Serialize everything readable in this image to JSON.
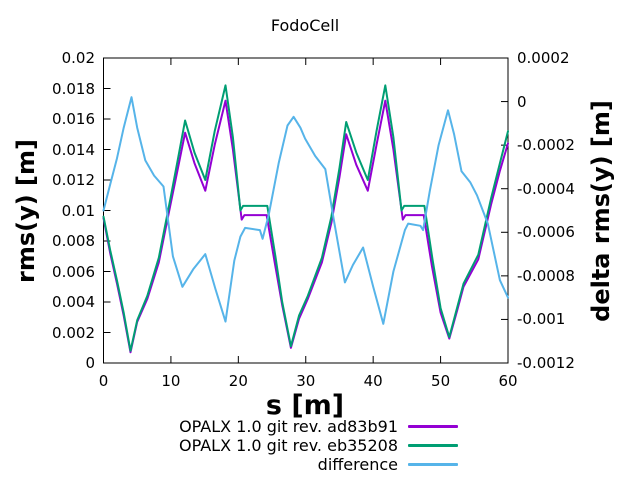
{
  "window": {
    "background": "#ffffff"
  },
  "chart_data": {
    "type": "line",
    "title": "FodoCell",
    "xlabel": "s [m]",
    "ylabel_left": "rms(y) [m]",
    "ylabel_right": "delta rms(y) [m]",
    "grid": false,
    "legend_position": "below plot, bottom center-right",
    "x_range": [
      0,
      60
    ],
    "y_left_range": [
      0,
      0.02
    ],
    "y_right_range": [
      -0.0012,
      0.0002
    ],
    "plot": {
      "l": 103.5,
      "t": 58,
      "r": 508,
      "b": 363
    },
    "axis_color": "#000000",
    "x_ticks": [
      {
        "v": 0,
        "label": "0"
      },
      {
        "v": 10,
        "label": "10"
      },
      {
        "v": 20,
        "label": "20"
      },
      {
        "v": 30,
        "label": "30"
      },
      {
        "v": 40,
        "label": "40"
      },
      {
        "v": 50,
        "label": "50"
      },
      {
        "v": 60,
        "label": "60"
      }
    ],
    "y_left_ticks": [
      {
        "v": 0,
        "label": "0"
      },
      {
        "v": 0.002,
        "label": "0.002"
      },
      {
        "v": 0.004,
        "label": "0.004"
      },
      {
        "v": 0.006,
        "label": "0.006"
      },
      {
        "v": 0.008,
        "label": "0.008"
      },
      {
        "v": 0.01,
        "label": "0.01"
      },
      {
        "v": 0.012,
        "label": "0.012"
      },
      {
        "v": 0.014,
        "label": "0.014"
      },
      {
        "v": 0.016,
        "label": "0.016"
      },
      {
        "v": 0.018,
        "label": "0.018"
      },
      {
        "v": 0.02,
        "label": "0.02"
      }
    ],
    "y_right_ticks": [
      {
        "v": 0.0002,
        "label": "0.0002"
      },
      {
        "v": 0,
        "label": "0"
      },
      {
        "v": -0.0002,
        "label": "-0.0002"
      },
      {
        "v": -0.0004,
        "label": "-0.0004"
      },
      {
        "v": -0.0006,
        "label": "-0.0006"
      },
      {
        "v": -0.0008,
        "label": "-0.0008"
      },
      {
        "v": -0.001,
        "label": "-0.001"
      },
      {
        "v": -0.0012,
        "label": "-0.0012"
      }
    ],
    "series": [
      {
        "name": "OPALX 1.0 git rev. ad83b91",
        "color": "#9400d3",
        "axis": "left",
        "points": [
          [
            0,
            0.0095
          ],
          [
            1,
            0.0072
          ],
          [
            2,
            0.0052
          ],
          [
            3,
            0.0031
          ],
          [
            4,
            0.0007
          ],
          [
            5,
            0.0027
          ],
          [
            6.5,
            0.0042
          ],
          [
            8.2,
            0.0066
          ],
          [
            9.9,
            0.0103
          ],
          [
            11,
            0.0127
          ],
          [
            12.1,
            0.0151
          ],
          [
            13.5,
            0.0131
          ],
          [
            15.1,
            0.0113
          ],
          [
            16.5,
            0.0143
          ],
          [
            18.1,
            0.0172
          ],
          [
            19.2,
            0.014
          ],
          [
            20.5,
            0.0094
          ],
          [
            20.9,
            0.0097
          ],
          [
            24.2,
            0.0097
          ],
          [
            25.4,
            0.0066
          ],
          [
            26.5,
            0.0038
          ],
          [
            27.8,
            0.001
          ],
          [
            29,
            0.0029
          ],
          [
            30.3,
            0.0042
          ],
          [
            32.4,
            0.0066
          ],
          [
            33.8,
            0.0092
          ],
          [
            35,
            0.0122
          ],
          [
            36,
            0.015
          ],
          [
            37.5,
            0.013
          ],
          [
            39.2,
            0.0113
          ],
          [
            40.5,
            0.0143
          ],
          [
            41.8,
            0.0172
          ],
          [
            43,
            0.014
          ],
          [
            44.4,
            0.0094
          ],
          [
            44.8,
            0.0097
          ],
          [
            47.5,
            0.0097
          ],
          [
            48.7,
            0.0064
          ],
          [
            50,
            0.0033
          ],
          [
            51.3,
            0.0016
          ],
          [
            52.5,
            0.0035
          ],
          [
            53.4,
            0.005
          ],
          [
            55.6,
            0.0068
          ],
          [
            57.5,
            0.0104
          ],
          [
            58.8,
            0.0126
          ],
          [
            60,
            0.0144
          ]
        ]
      },
      {
        "name": "OPALX 1.0 git rev. eb35208",
        "color": "#009e73",
        "axis": "left",
        "points": [
          [
            0,
            0.0096
          ],
          [
            1,
            0.0074
          ],
          [
            2,
            0.0054
          ],
          [
            3,
            0.0033
          ],
          [
            4,
            0.0008
          ],
          [
            5,
            0.0028
          ],
          [
            6.5,
            0.0044
          ],
          [
            8.2,
            0.0069
          ],
          [
            9.9,
            0.0107
          ],
          [
            11,
            0.0133
          ],
          [
            12.1,
            0.0159
          ],
          [
            13.5,
            0.0138
          ],
          [
            15.1,
            0.012
          ],
          [
            16.5,
            0.0152
          ],
          [
            18.1,
            0.0182
          ],
          [
            19.2,
            0.0148
          ],
          [
            20.3,
            0.01
          ],
          [
            20.7,
            0.0103
          ],
          [
            24.3,
            0.0103
          ],
          [
            25.5,
            0.007
          ],
          [
            26.5,
            0.004
          ],
          [
            27.8,
            0.0011
          ],
          [
            29,
            0.0031
          ],
          [
            30.3,
            0.0044
          ],
          [
            32.4,
            0.0069
          ],
          [
            33.8,
            0.0096
          ],
          [
            35,
            0.0128
          ],
          [
            36,
            0.0158
          ],
          [
            37.5,
            0.0138
          ],
          [
            39.2,
            0.012
          ],
          [
            40.5,
            0.0152
          ],
          [
            41.8,
            0.0182
          ],
          [
            43,
            0.0148
          ],
          [
            44.2,
            0.01
          ],
          [
            44.6,
            0.0103
          ],
          [
            47.6,
            0.0103
          ],
          [
            48.8,
            0.0068
          ],
          [
            50,
            0.0036
          ],
          [
            51.3,
            0.0017
          ],
          [
            52.5,
            0.0037
          ],
          [
            53.4,
            0.0052
          ],
          [
            55.6,
            0.0071
          ],
          [
            57.5,
            0.0108
          ],
          [
            58.8,
            0.0131
          ],
          [
            60,
            0.0152
          ]
        ]
      },
      {
        "name": "difference",
        "color": "#56b4e9",
        "axis": "right",
        "points": [
          [
            0,
            -0.0005
          ],
          [
            1,
            -0.00038
          ],
          [
            2,
            -0.00026
          ],
          [
            3,
            -0.00012
          ],
          [
            4.15,
            2e-05
          ],
          [
            5,
            -0.00012
          ],
          [
            6.2,
            -0.00027
          ],
          [
            7.5,
            -0.00034
          ],
          [
            8.9,
            -0.00039
          ],
          [
            10.3,
            -0.00071
          ],
          [
            11.7,
            -0.00085
          ],
          [
            13.3,
            -0.00077
          ],
          [
            15.1,
            -0.0007
          ],
          [
            16.6,
            -0.00086
          ],
          [
            18.1,
            -0.00101
          ],
          [
            19.4,
            -0.00073
          ],
          [
            20.3,
            -0.00062
          ],
          [
            21,
            -0.00058
          ],
          [
            23.2,
            -0.00059
          ],
          [
            23.6,
            -0.00063
          ],
          [
            24.5,
            -0.00052
          ],
          [
            26,
            -0.00028
          ],
          [
            27.3,
            -0.00011
          ],
          [
            28.2,
            -7e-05
          ],
          [
            29.2,
            -0.00012
          ],
          [
            29.9,
            -0.00017
          ],
          [
            31.4,
            -0.00025
          ],
          [
            32.9,
            -0.00031
          ],
          [
            34.2,
            -0.00055
          ],
          [
            35.8,
            -0.00083
          ],
          [
            37,
            -0.00075
          ],
          [
            38.5,
            -0.00067
          ],
          [
            40,
            -0.00085
          ],
          [
            41.5,
            -0.00102
          ],
          [
            43,
            -0.00078
          ],
          [
            44.7,
            -0.00059
          ],
          [
            45.2,
            -0.00056
          ],
          [
            47,
            -0.00057
          ],
          [
            47.4,
            -0.00059
          ],
          [
            48.4,
            -0.00041
          ],
          [
            49.7,
            -0.0002
          ],
          [
            51.1,
            -4e-05
          ],
          [
            52,
            -0.00015
          ],
          [
            53.1,
            -0.00032
          ],
          [
            54.4,
            -0.00037
          ],
          [
            55.4,
            -0.00043
          ],
          [
            57,
            -0.00056
          ],
          [
            58.8,
            -0.00082
          ],
          [
            60,
            -0.0009
          ]
        ]
      }
    ]
  }
}
